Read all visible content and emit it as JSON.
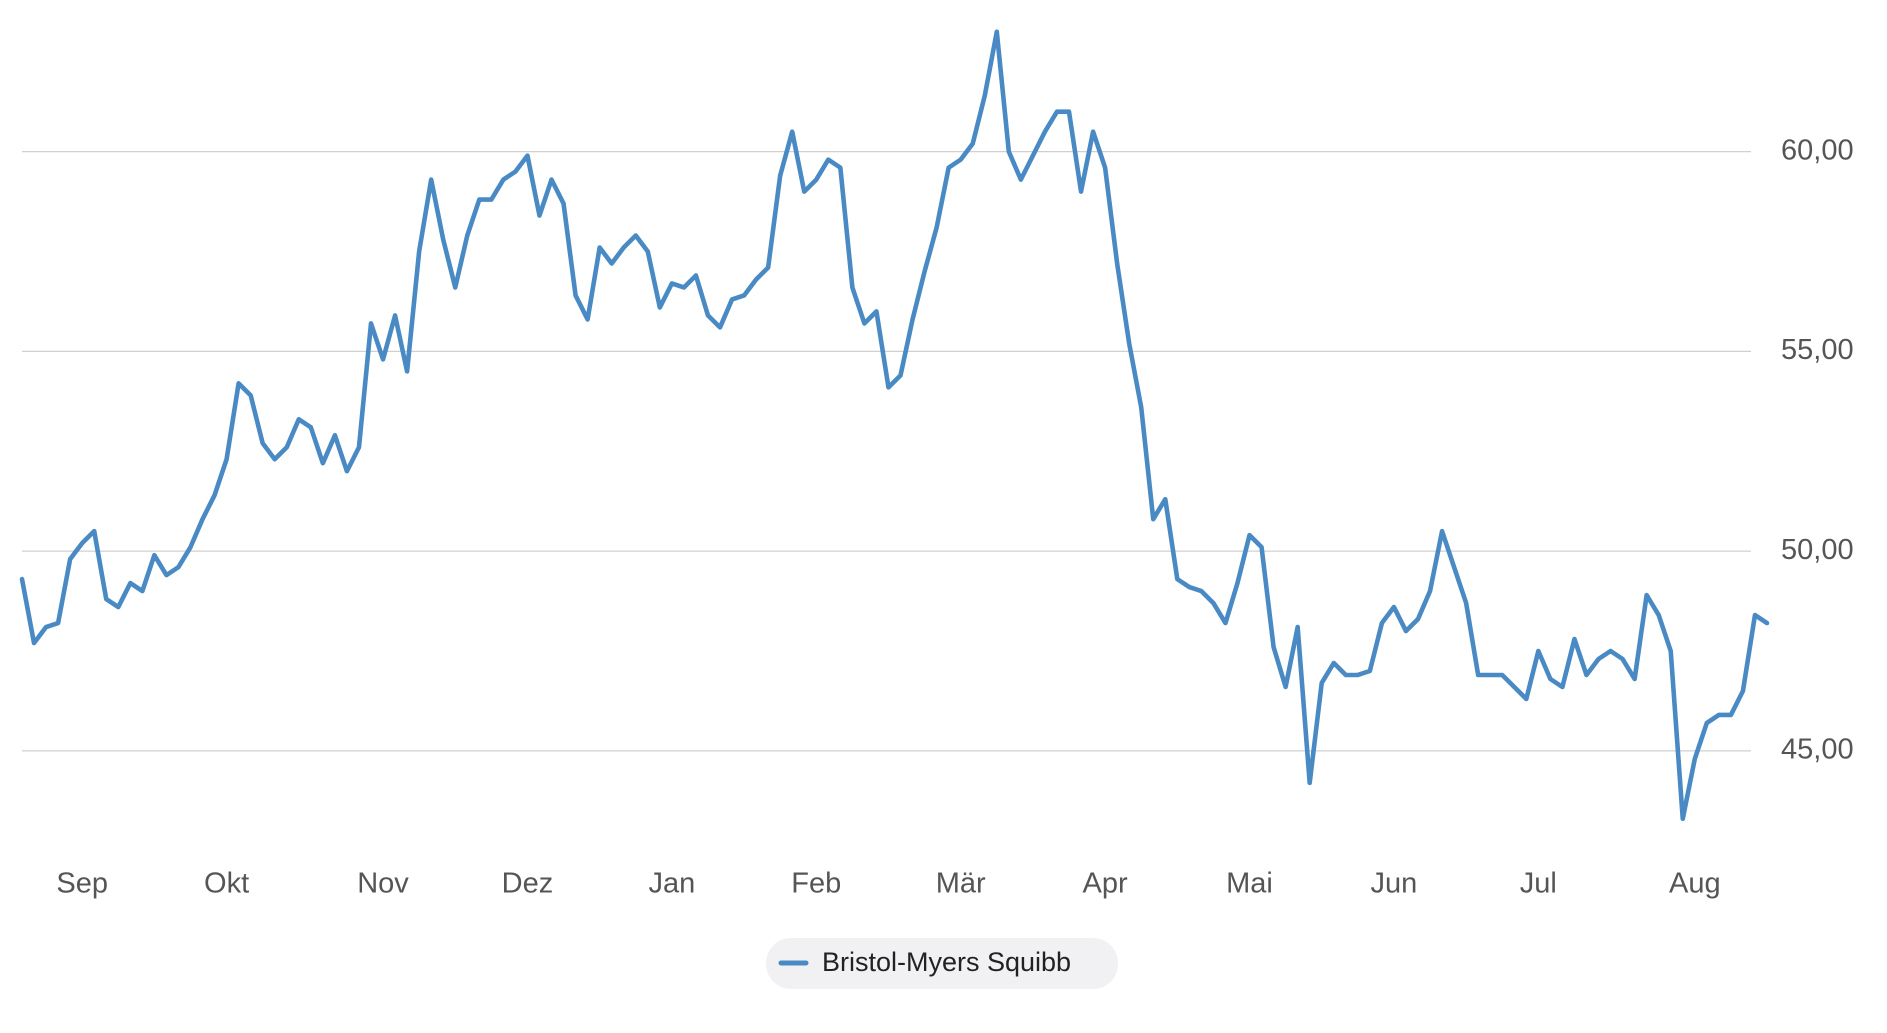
{
  "chart_data": {
    "type": "line",
    "categories": [
      null,
      null,
      null,
      null,
      null,
      "Sep",
      null,
      null,
      null,
      null,
      null,
      null,
      null,
      null,
      null,
      null,
      null,
      "Okt",
      null,
      null,
      null,
      null,
      null,
      null,
      null,
      null,
      null,
      null,
      null,
      null,
      "Nov",
      null,
      null,
      null,
      null,
      null,
      null,
      null,
      null,
      null,
      null,
      null,
      "Dez",
      null,
      null,
      null,
      null,
      null,
      null,
      null,
      null,
      null,
      null,
      null,
      "Jan",
      null,
      null,
      null,
      null,
      null,
      null,
      null,
      null,
      null,
      null,
      null,
      "Feb",
      null,
      null,
      null,
      null,
      null,
      null,
      null,
      null,
      null,
      null,
      null,
      "Mär",
      null,
      null,
      null,
      null,
      null,
      null,
      null,
      null,
      null,
      null,
      null,
      "Apr",
      null,
      null,
      null,
      null,
      null,
      null,
      null,
      null,
      null,
      null,
      null,
      "Mai",
      null,
      null,
      null,
      null,
      null,
      null,
      null,
      null,
      null,
      null,
      null,
      "Jun",
      null,
      null,
      null,
      null,
      null,
      null,
      null,
      null,
      null,
      null,
      null,
      "Jul",
      null,
      null,
      null,
      null,
      null,
      null,
      null,
      null,
      null,
      null,
      null,
      null,
      "Aug",
      null,
      null,
      null,
      null,
      null,
      null
    ],
    "series": [
      {
        "name": "Bristol-Myers Squibb",
        "color": "#4a8ac4",
        "values": [
          49.3,
          47.7,
          48.1,
          48.2,
          49.8,
          50.2,
          50.5,
          48.8,
          48.6,
          49.2,
          49.0,
          49.9,
          49.4,
          49.6,
          50.1,
          50.8,
          51.4,
          52.3,
          54.2,
          53.9,
          52.7,
          52.3,
          52.6,
          53.3,
          53.1,
          52.2,
          52.9,
          52.0,
          52.6,
          55.7,
          54.8,
          55.9,
          54.5,
          57.5,
          59.3,
          57.8,
          56.6,
          57.9,
          58.8,
          58.8,
          59.3,
          59.5,
          59.9,
          58.4,
          59.3,
          58.7,
          56.4,
          55.8,
          57.6,
          57.2,
          57.6,
          57.9,
          57.5,
          56.1,
          56.7,
          56.6,
          56.9,
          55.9,
          55.6,
          56.3,
          56.4,
          56.8,
          57.1,
          59.4,
          60.5,
          59.0,
          59.3,
          59.8,
          59.6,
          56.6,
          55.7,
          56.0,
          54.1,
          54.4,
          55.8,
          57.0,
          58.1,
          59.6,
          59.8,
          60.2,
          61.4,
          63.0,
          60.0,
          59.3,
          59.9,
          60.5,
          61.0,
          61.0,
          59.0,
          60.5,
          59.6,
          57.2,
          55.2,
          53.6,
          50.8,
          51.3,
          49.3,
          49.1,
          49.0,
          48.7,
          48.2,
          49.2,
          50.4,
          50.1,
          47.6,
          46.6,
          48.1,
          44.2,
          46.7,
          47.2,
          46.9,
          46.9,
          47.0,
          48.2,
          48.6,
          48.0,
          48.3,
          49.0,
          50.5,
          49.6,
          48.7,
          46.9,
          46.9,
          46.9,
          46.6,
          46.3,
          47.5,
          46.8,
          46.6,
          47.8,
          46.9,
          47.3,
          47.5,
          47.3,
          46.8,
          48.9,
          48.4,
          47.5,
          43.3,
          44.8,
          45.7,
          45.9,
          45.9,
          46.5,
          48.4,
          48.2
        ]
      }
    ],
    "ylim": [
      43,
      63.4
    ],
    "yticks": [
      {
        "value": 45,
        "label": "45,00"
      },
      {
        "value": 50,
        "label": "50,00"
      },
      {
        "value": 55,
        "label": "55,00"
      },
      {
        "value": 60,
        "label": "60,00"
      }
    ],
    "grid": true,
    "legend": "bottom"
  }
}
